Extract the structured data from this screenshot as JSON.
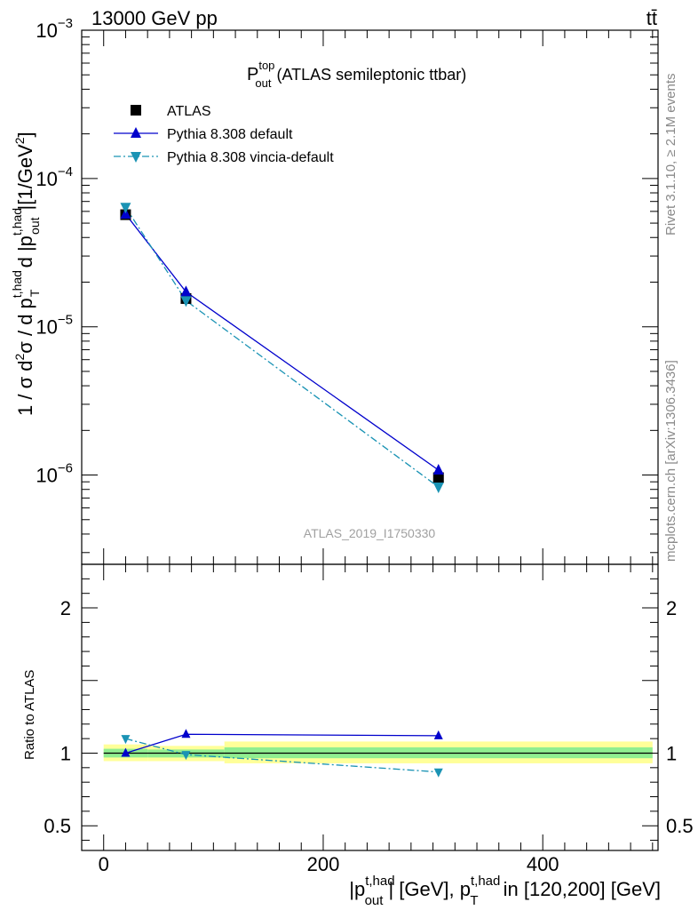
{
  "header": {
    "left": "13000 GeV pp",
    "right": "tt̄"
  },
  "side_text": {
    "rivet": "Rivet 3.1.10, ≥ 2.1M events",
    "mcplots": "mcplots.cern.ch [arXiv:1306.3436]"
  },
  "watermark": "ATLAS_2019_I1750330",
  "chart_data": [
    {
      "panel": "main",
      "type": "line",
      "title_main": "P",
      "title_sup": "top",
      "title_sub": "out",
      "title_rest": "(ATLAS semileptonic ttbar)",
      "ylabel": "1 / σ d²σ / d p_T^{t,had} d |p_out^{t,had}| [1/GeV²]",
      "yscale": "log",
      "ylim": [
        2.5e-07,
        0.001
      ],
      "xlim": [
        -20,
        505
      ],
      "ytick_labels": [
        {
          "value": 0.001,
          "mant": "10",
          "exp": "−3"
        },
        {
          "value": 0.0001,
          "mant": "10",
          "exp": "−4"
        },
        {
          "value": 1e-05,
          "mant": "10",
          "exp": "−5"
        },
        {
          "value": 1e-06,
          "mant": "10",
          "exp": "−6"
        }
      ],
      "legend": [
        {
          "label": "ATLAS",
          "color": "#000000",
          "marker": "square"
        },
        {
          "label": "Pythia 8.308 default",
          "color": "#0000cc",
          "marker": "triangle-up"
        },
        {
          "label": "Pythia 8.308 vincia-default",
          "color": "#1a93b4",
          "marker": "triangle-down"
        }
      ],
      "series": [
        {
          "name": "ATLAS",
          "x": [
            20,
            75,
            305
          ],
          "values": [
            5.7e-05,
            1.55e-05,
            9.6e-07
          ]
        },
        {
          "name": "Pythia 8.308 default",
          "x": [
            20,
            75,
            305
          ],
          "values": [
            5.75e-05,
            1.72e-05,
            1.08e-06
          ]
        },
        {
          "name": "Pythia 8.308 vincia-default",
          "x": [
            20,
            75,
            305
          ],
          "values": [
            6.4e-05,
            1.5e-05,
            8.3e-07
          ]
        }
      ]
    },
    {
      "panel": "ratio",
      "type": "line",
      "ylabel": "Ratio to ATLAS",
      "ylim": [
        0.33,
        2.3
      ],
      "xlim": [
        -20,
        505
      ],
      "ytick_labels": [
        {
          "value": 2,
          "label": "2"
        },
        {
          "value": 1,
          "label": "1"
        },
        {
          "value": 0.5,
          "label": "0.5"
        }
      ],
      "xtick_labels": [
        {
          "value": 0,
          "label": "0"
        },
        {
          "value": 200,
          "label": "200"
        },
        {
          "value": 400,
          "label": "400"
        }
      ],
      "xlabel_parts": [
        "|p",
        "t,had",
        "out",
        "| [GeV], p",
        "t,had",
        "T",
        " in [120,200] [GeV]"
      ],
      "bands": [
        {
          "x0": 0,
          "x1": 40,
          "yellow": [
            0.945,
            1.06
          ],
          "green": [
            0.97,
            1.03
          ]
        },
        {
          "x0": 40,
          "x1": 110,
          "yellow": [
            0.945,
            1.05
          ],
          "green": [
            0.97,
            1.025
          ]
        },
        {
          "x0": 110,
          "x1": 500,
          "yellow": [
            0.93,
            1.08
          ],
          "green": [
            0.965,
            1.04
          ]
        }
      ],
      "series": [
        {
          "name": "Pythia 8.308 default",
          "x": [
            20,
            75,
            305
          ],
          "values": [
            1.0,
            1.13,
            1.12
          ]
        },
        {
          "name": "Pythia 8.308 vincia-default",
          "x": [
            20,
            75,
            305
          ],
          "values": [
            1.1,
            0.99,
            0.87
          ]
        }
      ]
    }
  ]
}
